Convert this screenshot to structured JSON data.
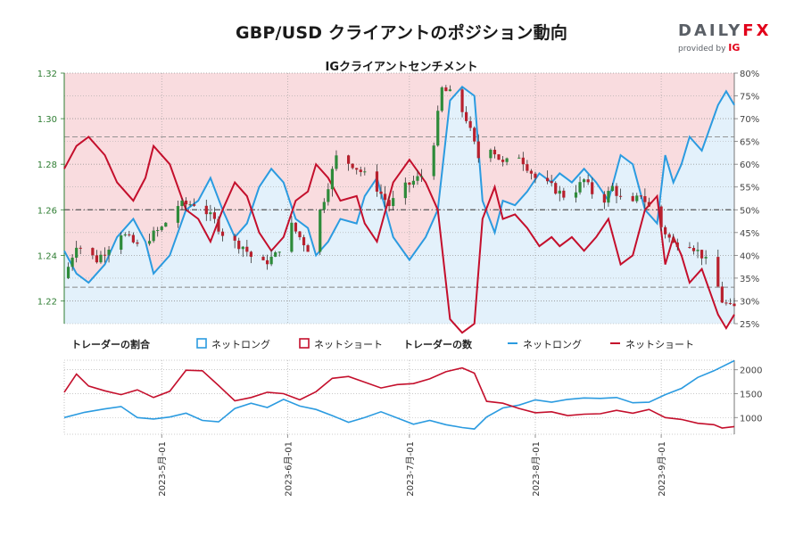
{
  "header": {
    "title": "GBP/USD クライアントのポジション動向",
    "subtitle": "IGクライアントセンチメント"
  },
  "logo": {
    "brand_left": "DAILY",
    "brand_right": "FX",
    "provided_by": "provided by",
    "ig": "IG"
  },
  "colors": {
    "long": "#2b9be0",
    "short": "#c40f2c",
    "long_fill": "#e3f1fb",
    "short_fill": "#f9dcdf",
    "candle_up": "#2e8b3a",
    "candle_down": "#b8202d",
    "price_axis": "#2e7d32"
  },
  "legend": {
    "ratio_label": "トレーダーの割合",
    "ratio_long": "ネットロング",
    "ratio_short": "ネットショート",
    "count_label": "トレーダーの数",
    "count_long": "ネットロング",
    "count_short": "ネットショート"
  },
  "chart_data": [
    {
      "type": "candlestick",
      "title": "IGクライアントセンチメント",
      "left_axis": {
        "ylim": [
          1.21,
          1.32
        ],
        "ticks": [
          "1.22",
          "1.24",
          "1.26",
          "1.28",
          "1.30",
          "1.32"
        ]
      },
      "right_axis": {
        "ylim": [
          25,
          80
        ],
        "ticks": [
          "25%",
          "30%",
          "35%",
          "40%",
          "45%",
          "50%",
          "55%",
          "60%",
          "65%",
          "70%",
          "75%",
          "80%"
        ]
      },
      "reference_lines_pct": [
        33,
        50,
        66
      ],
      "x_ticks": [
        "2023-5月-01",
        "2023-6月-01",
        "2023-7月-01",
        "2023-8月-01",
        "2023-9月-01"
      ],
      "grid": true,
      "price_anchors": [
        {
          "day": 0,
          "close": 1.23
        },
        {
          "day": 3,
          "close": 1.245
        },
        {
          "day": 8,
          "close": 1.238
        },
        {
          "day": 14,
          "close": 1.25
        },
        {
          "day": 18,
          "close": 1.244
        },
        {
          "day": 24,
          "close": 1.252
        },
        {
          "day": 28,
          "close": 1.262
        },
        {
          "day": 33,
          "close": 1.263
        },
        {
          "day": 37,
          "close": 1.255
        },
        {
          "day": 40,
          "close": 1.247
        },
        {
          "day": 44,
          "close": 1.244
        },
        {
          "day": 48,
          "close": 1.235
        },
        {
          "day": 52,
          "close": 1.24
        },
        {
          "day": 56,
          "close": 1.253
        },
        {
          "day": 60,
          "close": 1.243
        },
        {
          "day": 64,
          "close": 1.265
        },
        {
          "day": 67,
          "close": 1.283
        },
        {
          "day": 71,
          "close": 1.28
        },
        {
          "day": 76,
          "close": 1.272
        },
        {
          "day": 80,
          "close": 1.262
        },
        {
          "day": 84,
          "close": 1.27
        },
        {
          "day": 88,
          "close": 1.275
        },
        {
          "day": 91,
          "close": 1.29
        },
        {
          "day": 93,
          "close": 1.313
        },
        {
          "day": 96,
          "close": 1.31
        },
        {
          "day": 99,
          "close": 1.3
        },
        {
          "day": 102,
          "close": 1.283
        },
        {
          "day": 105,
          "close": 1.288
        },
        {
          "day": 108,
          "close": 1.28
        },
        {
          "day": 112,
          "close": 1.284
        },
        {
          "day": 116,
          "close": 1.274
        },
        {
          "day": 120,
          "close": 1.27
        },
        {
          "day": 124,
          "close": 1.265
        },
        {
          "day": 128,
          "close": 1.273
        },
        {
          "day": 132,
          "close": 1.262
        },
        {
          "day": 135,
          "close": 1.27
        },
        {
          "day": 139,
          "close": 1.26
        },
        {
          "day": 142,
          "close": 1.267
        },
        {
          "day": 146,
          "close": 1.255
        },
        {
          "day": 150,
          "close": 1.245
        },
        {
          "day": 153,
          "close": 1.247
        },
        {
          "day": 157,
          "close": 1.24
        },
        {
          "day": 160,
          "close": 1.232
        },
        {
          "day": 162,
          "close": 1.22
        },
        {
          "day": 164,
          "close": 1.217
        }
      ],
      "series": [
        {
          "name": "ネットロング",
          "points_pct": [
            [
              0,
              41
            ],
            [
              3,
              36
            ],
            [
              6,
              34
            ],
            [
              10,
              38
            ],
            [
              13,
              44
            ],
            [
              17,
              48
            ],
            [
              20,
              43
            ],
            [
              22,
              36
            ],
            [
              26,
              40
            ],
            [
              30,
              50
            ],
            [
              33,
              52
            ],
            [
              36,
              57
            ],
            [
              39,
              50
            ],
            [
              42,
              44
            ],
            [
              45,
              47
            ],
            [
              48,
              55
            ],
            [
              51,
              59
            ],
            [
              54,
              56
            ],
            [
              57,
              48
            ],
            [
              60,
              46
            ],
            [
              62,
              40
            ],
            [
              65,
              43
            ],
            [
              68,
              48
            ],
            [
              72,
              47
            ],
            [
              74,
              53
            ],
            [
              77,
              57
            ],
            [
              81,
              44
            ],
            [
              85,
              39
            ],
            [
              89,
              44
            ],
            [
              92,
              50
            ],
            [
              95,
              74
            ],
            [
              98,
              77
            ],
            [
              101,
              75
            ],
            [
              103,
              52
            ],
            [
              106,
              45
            ],
            [
              108,
              52
            ],
            [
              111,
              51
            ],
            [
              114,
              54
            ],
            [
              117,
              58
            ],
            [
              120,
              56
            ],
            [
              122,
              58
            ],
            [
              125,
              56
            ],
            [
              128,
              59
            ],
            [
              131,
              56
            ],
            [
              134,
              52
            ],
            [
              137,
              62
            ],
            [
              140,
              60
            ],
            [
              143,
              50
            ],
            [
              146,
              47
            ],
            [
              148,
              62
            ],
            [
              150,
              56
            ],
            [
              152,
              60
            ],
            [
              154,
              66
            ],
            [
              157,
              63
            ],
            [
              159,
              68
            ],
            [
              161,
              73
            ],
            [
              163,
              76
            ],
            [
              165,
              73
            ]
          ]
        },
        {
          "name": "ネットショート",
          "points_pct": [
            [
              0,
              59
            ],
            [
              3,
              64
            ],
            [
              6,
              66
            ],
            [
              10,
              62
            ],
            [
              13,
              56
            ],
            [
              17,
              52
            ],
            [
              20,
              57
            ],
            [
              22,
              64
            ],
            [
              26,
              60
            ],
            [
              30,
              50
            ],
            [
              33,
              48
            ],
            [
              36,
              43
            ],
            [
              39,
              50
            ],
            [
              42,
              56
            ],
            [
              45,
              53
            ],
            [
              48,
              45
            ],
            [
              51,
              41
            ],
            [
              54,
              44
            ],
            [
              57,
              52
            ],
            [
              60,
              54
            ],
            [
              62,
              60
            ],
            [
              65,
              57
            ],
            [
              68,
              52
            ],
            [
              72,
              53
            ],
            [
              74,
              47
            ],
            [
              77,
              43
            ],
            [
              81,
              56
            ],
            [
              85,
              61
            ],
            [
              89,
              56
            ],
            [
              92,
              50
            ],
            [
              95,
              26
            ],
            [
              98,
              23
            ],
            [
              101,
              25
            ],
            [
              103,
              48
            ],
            [
              106,
              55
            ],
            [
              108,
              48
            ],
            [
              111,
              49
            ],
            [
              114,
              46
            ],
            [
              117,
              42
            ],
            [
              120,
              44
            ],
            [
              122,
              42
            ],
            [
              125,
              44
            ],
            [
              128,
              41
            ],
            [
              131,
              44
            ],
            [
              134,
              48
            ],
            [
              137,
              38
            ],
            [
              140,
              40
            ],
            [
              143,
              50
            ],
            [
              146,
              53
            ],
            [
              148,
              38
            ],
            [
              150,
              44
            ],
            [
              152,
              40
            ],
            [
              154,
              34
            ],
            [
              157,
              37
            ],
            [
              159,
              32
            ],
            [
              161,
              27
            ],
            [
              163,
              24
            ],
            [
              165,
              27
            ]
          ]
        }
      ]
    },
    {
      "type": "line",
      "title": "トレーダーの数",
      "ylim": [
        650,
        2200
      ],
      "y_ticks": [
        "1000",
        "1500",
        "2000"
      ],
      "series": [
        {
          "name": "ネットロング",
          "points": [
            [
              0,
              1000
            ],
            [
              5,
              1110
            ],
            [
              10,
              1180
            ],
            [
              14,
              1230
            ],
            [
              18,
              1000
            ],
            [
              22,
              970
            ],
            [
              26,
              1010
            ],
            [
              30,
              1090
            ],
            [
              34,
              940
            ],
            [
              38,
              910
            ],
            [
              42,
              1190
            ],
            [
              46,
              1300
            ],
            [
              50,
              1210
            ],
            [
              54,
              1380
            ],
            [
              58,
              1240
            ],
            [
              62,
              1170
            ],
            [
              66,
              1040
            ],
            [
              70,
              900
            ],
            [
              74,
              1000
            ],
            [
              78,
              1120
            ],
            [
              82,
              990
            ],
            [
              86,
              860
            ],
            [
              90,
              940
            ],
            [
              94,
              850
            ],
            [
              98,
              790
            ],
            [
              101,
              760
            ],
            [
              104,
              1010
            ],
            [
              108,
              1200
            ],
            [
              112,
              1260
            ],
            [
              116,
              1370
            ],
            [
              120,
              1320
            ],
            [
              124,
              1380
            ],
            [
              128,
              1410
            ],
            [
              132,
              1400
            ],
            [
              136,
              1420
            ],
            [
              140,
              1310
            ],
            [
              144,
              1320
            ],
            [
              148,
              1480
            ],
            [
              152,
              1610
            ],
            [
              156,
              1840
            ],
            [
              160,
              1980
            ],
            [
              165,
              2190
            ]
          ]
        },
        {
          "name": "ネットショート",
          "points": [
            [
              0,
              1530
            ],
            [
              3,
              1910
            ],
            [
              6,
              1660
            ],
            [
              10,
              1560
            ],
            [
              14,
              1480
            ],
            [
              18,
              1580
            ],
            [
              22,
              1420
            ],
            [
              26,
              1550
            ],
            [
              30,
              1990
            ],
            [
              34,
              1980
            ],
            [
              38,
              1670
            ],
            [
              42,
              1350
            ],
            [
              46,
              1420
            ],
            [
              50,
              1530
            ],
            [
              54,
              1500
            ],
            [
              58,
              1370
            ],
            [
              62,
              1540
            ],
            [
              66,
              1820
            ],
            [
              70,
              1860
            ],
            [
              74,
              1740
            ],
            [
              78,
              1620
            ],
            [
              82,
              1690
            ],
            [
              86,
              1710
            ],
            [
              90,
              1810
            ],
            [
              94,
              1960
            ],
            [
              98,
              2040
            ],
            [
              101,
              1930
            ],
            [
              104,
              1340
            ],
            [
              108,
              1300
            ],
            [
              112,
              1190
            ],
            [
              116,
              1100
            ],
            [
              120,
              1120
            ],
            [
              124,
              1040
            ],
            [
              128,
              1070
            ],
            [
              132,
              1080
            ],
            [
              136,
              1150
            ],
            [
              140,
              1090
            ],
            [
              144,
              1170
            ],
            [
              148,
              1000
            ],
            [
              152,
              960
            ],
            [
              156,
              880
            ],
            [
              160,
              850
            ],
            [
              162,
              780
            ],
            [
              165,
              810
            ]
          ]
        }
      ]
    }
  ]
}
